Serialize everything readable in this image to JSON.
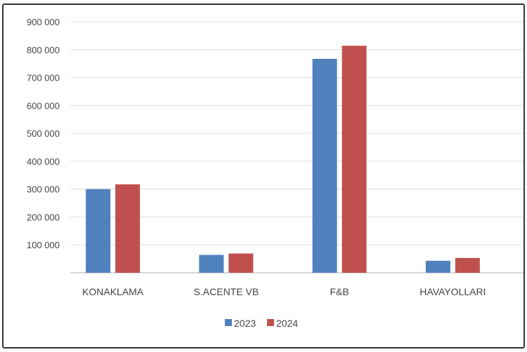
{
  "chart_data": {
    "type": "bar",
    "title": "",
    "xlabel": "",
    "ylabel": "",
    "categories": [
      "KONAKLAMA",
      "S.ACENTE VB",
      "F&B",
      "HAVAYOLLARI"
    ],
    "series": [
      {
        "name": "2023",
        "color": "#4f81bd",
        "values": [
          300000,
          64000,
          767000,
          43000
        ]
      },
      {
        "name": "2024",
        "color": "#c0504d",
        "values": [
          317000,
          69000,
          814000,
          53000
        ]
      }
    ],
    "ylim": [
      0,
      900000
    ],
    "yticks": [
      "",
      "100 000",
      "200 000",
      "300 000",
      "400 000",
      "500 000",
      "600 000",
      "700 000",
      "800 000",
      "900 000"
    ],
    "grid": true,
    "legend": "bottom"
  }
}
